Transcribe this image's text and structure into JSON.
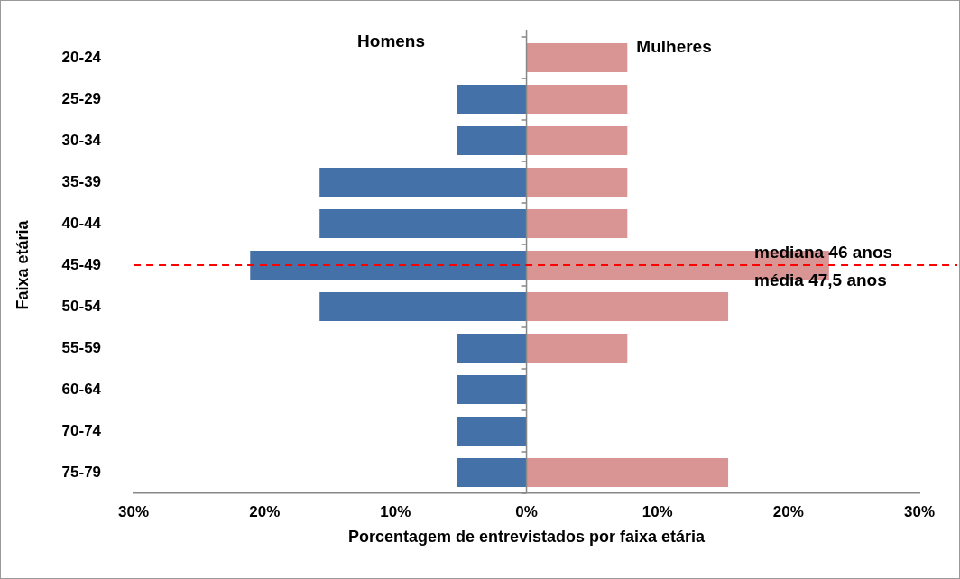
{
  "chart_data": {
    "type": "bar",
    "orientation": "horizontal",
    "stacked": true,
    "xlabel": "Porcentagem de entrevistados por faixa etária",
    "ylabel": "Faixa etária",
    "categories": [
      "20-24",
      "25-29",
      "30-34",
      "35-39",
      "40-44",
      "45-49",
      "50-54",
      "55-59",
      "60-64",
      "70-74",
      "75-79"
    ],
    "series": [
      {
        "name": "Homens",
        "color": "#4472a8",
        "values": [
          0,
          -5.3,
          -5.3,
          -15.8,
          -15.8,
          -21.1,
          -15.8,
          -5.3,
          -5.3,
          -5.3,
          -5.3
        ]
      },
      {
        "name": "Mulheres",
        "color": "#d99594",
        "values": [
          7.7,
          7.7,
          7.7,
          7.7,
          7.7,
          23.1,
          15.4,
          7.7,
          0,
          0,
          15.4
        ]
      }
    ],
    "xlim": [
      -30,
      30
    ],
    "xticks": [
      {
        "value": -30,
        "label": "30%"
      },
      {
        "value": -20,
        "label": "20%"
      },
      {
        "value": -10,
        "label": "10%"
      },
      {
        "value": 0,
        "label": "0%"
      },
      {
        "value": 10,
        "label": "10%"
      },
      {
        "value": 20,
        "label": "20%"
      },
      {
        "value": 30,
        "label": "30%"
      }
    ],
    "ref_lines": [
      {
        "axis": "y",
        "value": "45-49",
        "label": "mediana 46 anos",
        "color": "#ff0000",
        "line_style": "dashed"
      }
    ],
    "annotations": [
      "média 47,5 anos"
    ],
    "grid": false
  }
}
